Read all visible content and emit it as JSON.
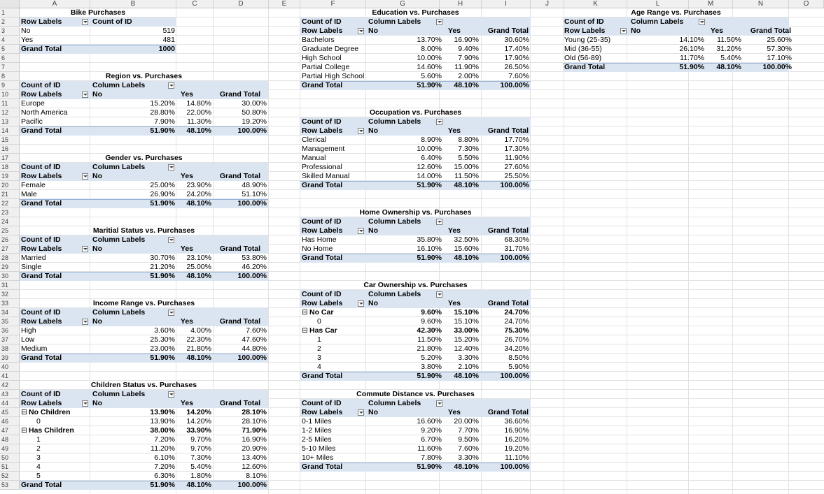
{
  "columns": [
    "A",
    "B",
    "C",
    "D",
    "E",
    "F",
    "G",
    "H",
    "I",
    "J",
    "K",
    "L",
    "M",
    "N",
    "O"
  ],
  "rows": [
    "1",
    "2",
    "3",
    "4",
    "5",
    "6",
    "7",
    "8",
    "9",
    "10",
    "11",
    "12",
    "13",
    "14",
    "15",
    "16",
    "17",
    "18",
    "19",
    "20",
    "21",
    "22",
    "23",
    "24",
    "25",
    "26",
    "27",
    "28",
    "29",
    "30",
    "31",
    "32",
    "33",
    "34",
    "35",
    "36",
    "37",
    "38",
    "39",
    "40",
    "41",
    "42",
    "43",
    "44",
    "45",
    "46",
    "47",
    "48",
    "49",
    "50",
    "51",
    "52",
    "53"
  ],
  "labels": {
    "count_of_id": "Count of ID",
    "column_labels": "Column Labels",
    "row_labels": "Row Labels",
    "no": "No",
    "yes": "Yes",
    "grand_total": "Grand Total"
  },
  "bike": {
    "title": "Bike Purchases",
    "row_labels": "Row Labels",
    "count_label": "Count of ID",
    "rows": [
      [
        "No",
        "519"
      ],
      [
        "Yes",
        "481"
      ]
    ],
    "total": [
      "Grand Total",
      "1000"
    ]
  },
  "region": {
    "title": "Region vs. Purchases",
    "rows": [
      [
        "Europe",
        "15.20%",
        "14.80%",
        "30.00%"
      ],
      [
        "North America",
        "28.80%",
        "22.00%",
        "50.80%"
      ],
      [
        "Pacific",
        "7.90%",
        "11.30%",
        "19.20%"
      ]
    ],
    "total": [
      "Grand Total",
      "51.90%",
      "48.10%",
      "100.00%"
    ]
  },
  "gender": {
    "title": "Gender vs. Purchases",
    "rows": [
      [
        "Female",
        "25.00%",
        "23.90%",
        "48.90%"
      ],
      [
        "Male",
        "26.90%",
        "24.20%",
        "51.10%"
      ]
    ],
    "total": [
      "Grand Total",
      "51.90%",
      "48.10%",
      "100.00%"
    ]
  },
  "marital": {
    "title": "Maritial Status vs. Purchases",
    "rows": [
      [
        "Married",
        "30.70%",
        "23.10%",
        "53.80%"
      ],
      [
        "Single",
        "21.20%",
        "25.00%",
        "46.20%"
      ]
    ],
    "total": [
      "Grand Total",
      "51.90%",
      "48.10%",
      "100.00%"
    ]
  },
  "income": {
    "title": "Income Range vs. Purchases",
    "rows": [
      [
        "High",
        "3.60%",
        "4.00%",
        "7.60%"
      ],
      [
        "Low",
        "25.30%",
        "22.30%",
        "47.60%"
      ],
      [
        "Medium",
        "23.00%",
        "21.80%",
        "44.80%"
      ]
    ],
    "total": [
      "Grand Total",
      "51.90%",
      "48.10%",
      "100.00%"
    ]
  },
  "children": {
    "title": "Children Status vs. Purchases",
    "groups": [
      {
        "label": "No Children",
        "vals": [
          "13.90%",
          "14.20%",
          "28.10%"
        ],
        "items": [
          [
            "0",
            "13.90%",
            "14.20%",
            "28.10%"
          ]
        ]
      },
      {
        "label": "Has Children",
        "vals": [
          "38.00%",
          "33.90%",
          "71.90%"
        ],
        "items": [
          [
            "1",
            "7.20%",
            "9.70%",
            "16.90%"
          ],
          [
            "2",
            "11.20%",
            "9.70%",
            "20.90%"
          ],
          [
            "3",
            "6.10%",
            "7.30%",
            "13.40%"
          ],
          [
            "4",
            "7.20%",
            "5.40%",
            "12.60%"
          ],
          [
            "5",
            "6.30%",
            "1.80%",
            "8.10%"
          ]
        ]
      }
    ],
    "total": [
      "Grand Total",
      "51.90%",
      "48.10%",
      "100.00%"
    ]
  },
  "education": {
    "title": "Education vs. Purchases",
    "rows": [
      [
        "Bachelors",
        "13.70%",
        "16.90%",
        "30.60%"
      ],
      [
        "Graduate Degree",
        "8.00%",
        "9.40%",
        "17.40%"
      ],
      [
        "High School",
        "10.00%",
        "7.90%",
        "17.90%"
      ],
      [
        "Partial College",
        "14.60%",
        "11.90%",
        "26.50%"
      ],
      [
        "Partial High School",
        "5.60%",
        "2.00%",
        "7.60%"
      ]
    ],
    "total": [
      "Grand Total",
      "51.90%",
      "48.10%",
      "100.00%"
    ]
  },
  "occupation": {
    "title": "Occupation vs. Purchases",
    "rows": [
      [
        "Clerical",
        "8.90%",
        "8.80%",
        "17.70%"
      ],
      [
        "Management",
        "10.00%",
        "7.30%",
        "17.30%"
      ],
      [
        "Manual",
        "6.40%",
        "5.50%",
        "11.90%"
      ],
      [
        "Professional",
        "12.60%",
        "15.00%",
        "27.60%"
      ],
      [
        "Skilled Manual",
        "14.00%",
        "11.50%",
        "25.50%"
      ]
    ],
    "total": [
      "Grand Total",
      "51.90%",
      "48.10%",
      "100.00%"
    ]
  },
  "home": {
    "title": "Home Ownership vs. Purchases",
    "rows": [
      [
        "Has Home",
        "35.80%",
        "32.50%",
        "68.30%"
      ],
      [
        "No Home",
        "16.10%",
        "15.60%",
        "31.70%"
      ]
    ],
    "total": [
      "Grand Total",
      "51.90%",
      "48.10%",
      "100.00%"
    ]
  },
  "car": {
    "title": "Car Ownership vs. Purchases",
    "groups": [
      {
        "label": "No Car",
        "vals": [
          "9.60%",
          "15.10%",
          "24.70%"
        ],
        "items": [
          [
            "0",
            "9.60%",
            "15.10%",
            "24.70%"
          ]
        ]
      },
      {
        "label": "Has Car",
        "vals": [
          "42.30%",
          "33.00%",
          "75.30%"
        ],
        "items": [
          [
            "1",
            "11.50%",
            "15.20%",
            "26.70%"
          ],
          [
            "2",
            "21.80%",
            "12.40%",
            "34.20%"
          ],
          [
            "3",
            "5.20%",
            "3.30%",
            "8.50%"
          ],
          [
            "4",
            "3.80%",
            "2.10%",
            "5.90%"
          ]
        ]
      }
    ],
    "total": [
      "Grand Total",
      "51.90%",
      "48.10%",
      "100.00%"
    ]
  },
  "commute": {
    "title": "Commute Distance vs. Purchases",
    "rows": [
      [
        "0-1 Miles",
        "16.60%",
        "20.00%",
        "36.60%"
      ],
      [
        "1-2 Miles",
        "9.20%",
        "7.70%",
        "16.90%"
      ],
      [
        "2-5 Miles",
        "6.70%",
        "9.50%",
        "16.20%"
      ],
      [
        "5-10 Miles",
        "11.60%",
        "7.60%",
        "19.20%"
      ],
      [
        "10+ Miles",
        "7.80%",
        "3.30%",
        "11.10%"
      ]
    ],
    "total": [
      "Grand Total",
      "51.90%",
      "48.10%",
      "100.00%"
    ]
  },
  "age": {
    "title": "Age Range vs. Purchases",
    "rows": [
      [
        "Young (25-35)",
        "14.10%",
        "11.50%",
        "25.60%"
      ],
      [
        "Mid (36-55)",
        "26.10%",
        "31.20%",
        "57.30%"
      ],
      [
        "Old (56-89)",
        "11.70%",
        "5.40%",
        "17.10%"
      ]
    ],
    "total": [
      "Grand Total",
      "51.90%",
      "48.10%",
      "100.00%"
    ]
  },
  "expand_symbol": "⊟"
}
